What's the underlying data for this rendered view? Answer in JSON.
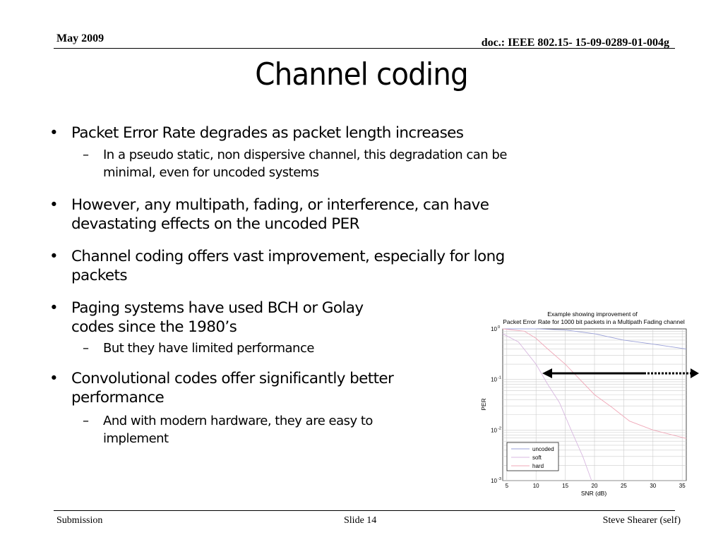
{
  "header": {
    "date": "May 2009",
    "doc": "doc.: IEEE 802.15- 15-09-0289-01-004g"
  },
  "title": "Channel coding",
  "bullets": [
    {
      "text": "Packet Error Rate degrades as packet length increases"
    },
    {
      "text": "In a pseudo static, non dispersive channel, this degradation can be minimal, even for uncoded systems"
    },
    {
      "text": "However, any multipath, fading, or interference, can have devastating effects on the uncoded PER"
    },
    {
      "text": "Channel coding offers vast improvement, especially for long packets"
    },
    {
      "text": "Paging systems have used BCH or Golay codes since the 1980’s"
    },
    {
      "text": "But they have limited performance"
    },
    {
      "text": "Convolutional codes  offer significantly better performance"
    },
    {
      "text": "And with modern hardware, they are easy to implement"
    }
  ],
  "bullet_glyph": "•",
  "sub_glyph": "–",
  "footer": {
    "left": "Submission",
    "center": "Slide 14",
    "right": "Steve Shearer  (self)"
  },
  "chart_data": {
    "type": "line",
    "title": [
      "Example showing improvement of",
      "Packet Error Rate for 1000 bit packets in a Multipath Fading channel"
    ],
    "xlabel": "SNR  (dB)",
    "ylabel": "PER",
    "xlim": [
      4.3,
      35.7
    ],
    "ylim": [
      0.001,
      1
    ],
    "yscale": "log",
    "grid": true,
    "legend": "bottom-left",
    "xticks": [
      5,
      10,
      15,
      20,
      25,
      30,
      35
    ],
    "yticks": [
      {
        "value": 1,
        "base": "10",
        "exp": "0"
      },
      {
        "value": 0.1,
        "base": "10",
        "exp": "-1"
      },
      {
        "value": 0.01,
        "base": "10",
        "exp": "-2"
      },
      {
        "value": 0.001,
        "base": "10",
        "exp": "-3"
      }
    ],
    "series": [
      {
        "name": "uncoded",
        "color": "#9aa0d8",
        "x": [
          4.3,
          10,
          15,
          20,
          25,
          30,
          35.7
        ],
        "y": [
          1,
          1,
          0.95,
          0.8,
          0.6,
          0.5,
          0.4
        ]
      },
      {
        "name": "soft",
        "color": "#d8b8e0",
        "x": [
          4.3,
          7,
          10,
          12,
          14,
          16,
          18,
          19.5
        ],
        "y": [
          0.8,
          0.55,
          0.2,
          0.08,
          0.035,
          0.01,
          0.003,
          0.001
        ]
      },
      {
        "name": "hard",
        "color": "#f0a8b8",
        "x": [
          4.3,
          8,
          10,
          12,
          15,
          20,
          23,
          26,
          30,
          35.7
        ],
        "y": [
          1,
          0.9,
          0.65,
          0.4,
          0.2,
          0.05,
          0.028,
          0.015,
          0.01,
          0.0068
        ]
      }
    ]
  }
}
